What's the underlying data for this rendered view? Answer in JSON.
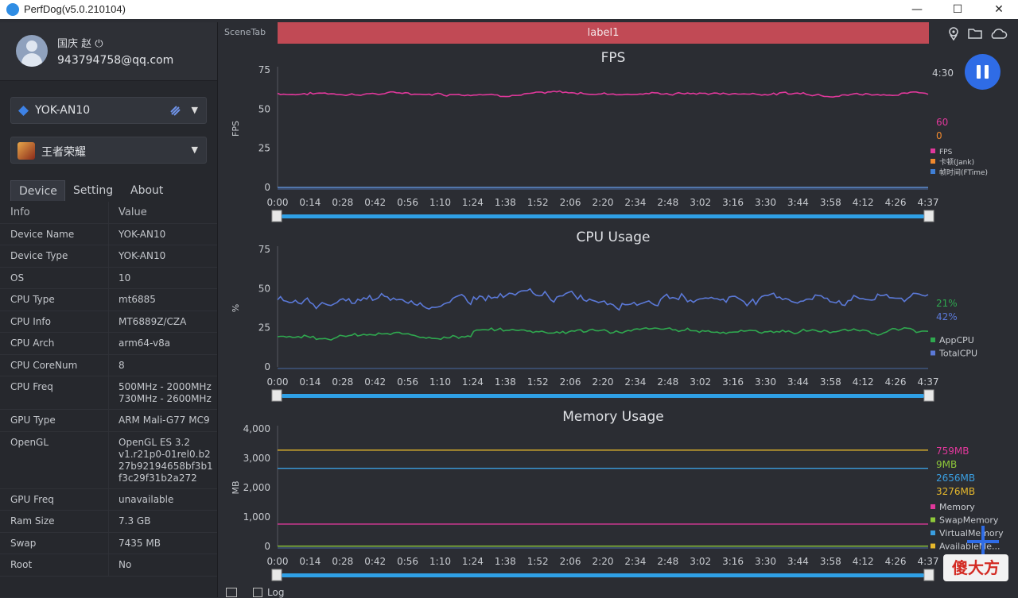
{
  "window": {
    "title": "PerfDog(v5.0.210104)",
    "controls": [
      "—",
      "☐",
      "✕"
    ]
  },
  "user": {
    "name": "国庆 赵 ⏻",
    "email": "943794758@qq.com"
  },
  "device_select": {
    "label": "YOK-AN10"
  },
  "app_select": {
    "label": "王者荣耀"
  },
  "tabs": [
    {
      "label": "Device"
    },
    {
      "label": "Setting"
    },
    {
      "label": "About"
    }
  ],
  "info_table": {
    "header": {
      "key": "Info",
      "value": "Value"
    },
    "rows": [
      {
        "key": "Device Name",
        "value": "YOK-AN10"
      },
      {
        "key": "Device Type",
        "value": "YOK-AN10"
      },
      {
        "key": "OS",
        "value": "10"
      },
      {
        "key": "CPU Type",
        "value": "mt6885"
      },
      {
        "key": "CPU Info",
        "value": "MT6889Z/CZA"
      },
      {
        "key": "CPU Arch",
        "value": "arm64-v8a"
      },
      {
        "key": "CPU CoreNum",
        "value": "8"
      },
      {
        "key": "CPU Freq",
        "value": "500MHz - 2000MHz\n730MHz - 2600MHz"
      },
      {
        "key": "GPU Type",
        "value": "ARM Mali-G77 MC9"
      },
      {
        "key": "OpenGL",
        "value": "OpenGL ES 3.2\nv1.r21p0-01rel0.b2\n27b92194658bf3b1\nf3c29f31b2a272"
      },
      {
        "key": "GPU Freq",
        "value": "unavailable"
      },
      {
        "key": "Ram Size",
        "value": "7.3 GB"
      },
      {
        "key": "Swap",
        "value": "7435 MB"
      },
      {
        "key": "Root",
        "value": "No"
      }
    ]
  },
  "scene": {
    "tab_label": "SceneTab",
    "label_bar": "label1"
  },
  "toolbar_icons": [
    "location-icon",
    "folder-icon",
    "cloud-icon"
  ],
  "timer": "4:30",
  "bottom": {
    "log_label": "Log"
  },
  "watermark": "傻大方",
  "chart_data": [
    {
      "type": "line",
      "title": "FPS",
      "ylabel": "FPS",
      "ylim": [
        0,
        75
      ],
      "yticks": [
        "75",
        "50",
        "25",
        "0"
      ],
      "x": [
        "0:00",
        "0:14",
        "0:28",
        "0:42",
        "0:56",
        "1:10",
        "1:24",
        "1:38",
        "1:52",
        "2:06",
        "2:20",
        "2:34",
        "2:48",
        "3:02",
        "3:16",
        "3:30",
        "3:44",
        "3:58",
        "4:12",
        "4:26",
        "4:37"
      ],
      "series": [
        {
          "name": "FPS",
          "color": "#e0389b",
          "level": 60,
          "noise": 0.8,
          "current": "60"
        },
        {
          "name": "卡顿(Jank)",
          "color": "#f0892d",
          "level": 0,
          "noise": 0,
          "current": "0"
        },
        {
          "name": "帧时间(FTime)",
          "color": "#3f7fd6",
          "level": 0,
          "noise": 0,
          "current": ""
        }
      ],
      "current_values": [
        "60",
        "0"
      ],
      "legend": [
        "FPS",
        "卡顿(Jank)",
        "帧时间(FTime)"
      ]
    },
    {
      "type": "line",
      "title": "CPU Usage",
      "ylabel": "%",
      "ylim": [
        0,
        75
      ],
      "yticks": [
        "75",
        "50",
        "25",
        "0"
      ],
      "x": [
        "0:00",
        "0:14",
        "0:28",
        "0:42",
        "0:56",
        "1:10",
        "1:24",
        "1:38",
        "1:52",
        "2:06",
        "2:20",
        "2:34",
        "2:48",
        "3:02",
        "3:16",
        "3:30",
        "3:44",
        "3:58",
        "4:12",
        "4:26",
        "4:37"
      ],
      "series": [
        {
          "name": "AppCPU",
          "color": "#2fa84f",
          "level": 21,
          "noise": 1.2,
          "current": "21%"
        },
        {
          "name": "TotalCPU",
          "color": "#5b79d8",
          "level": 42,
          "noise": 2.5,
          "current": "42%"
        }
      ],
      "current_values": [
        "21%",
        "42%"
      ],
      "legend": [
        "AppCPU",
        "TotalCPU"
      ]
    },
    {
      "type": "line",
      "title": "Memory Usage",
      "ylabel": "MB",
      "ylim": [
        0,
        4000
      ],
      "yticks": [
        "4,000",
        "3,000",
        "2,000",
        "1,000",
        "0"
      ],
      "x": [
        "0:00",
        "0:14",
        "0:28",
        "0:42",
        "0:56",
        "1:10",
        "1:24",
        "1:38",
        "1:52",
        "2:06",
        "2:20",
        "2:34",
        "2:48",
        "3:02",
        "3:16",
        "3:30",
        "3:44",
        "3:58",
        "4:12",
        "4:26",
        "4:37"
      ],
      "series": [
        {
          "name": "Memory",
          "color": "#e0389b",
          "level": 759,
          "noise": 0,
          "current": "759MB"
        },
        {
          "name": "SwapMemory",
          "color": "#8fc93a",
          "level": 9,
          "noise": 0,
          "current": "9MB"
        },
        {
          "name": "VirtualMemory",
          "color": "#3a9ee0",
          "level": 2656,
          "noise": 0,
          "current": "2656MB"
        },
        {
          "name": "AvailableMe...",
          "color": "#e6b82c",
          "level": 3276,
          "noise": 0,
          "current": "3276MB"
        }
      ],
      "current_values": [
        "759MB",
        "9MB",
        "2656MB",
        "3276MB"
      ],
      "legend": [
        "Memory",
        "SwapMemory",
        "VirtualMemory",
        "AvailableMe..."
      ]
    }
  ]
}
